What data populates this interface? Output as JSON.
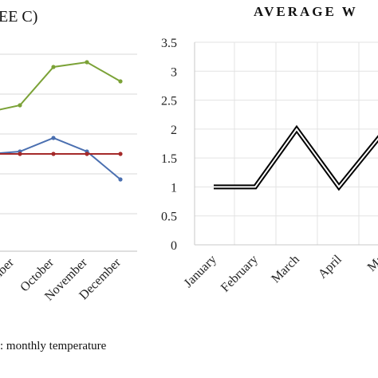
{
  "chart_data": [
    {
      "type": "line",
      "title": "EE C)",
      "categories": [
        "mber",
        "October",
        "November",
        "December"
      ],
      "series": [
        {
          "values": [
            135,
            85,
            78,
            102
          ],
          "color": "#7ba237"
        },
        {
          "values": [
            190,
            173,
            190,
            225
          ],
          "color": "#4a6fb0"
        },
        {
          "values": [
            193,
            193,
            193,
            193
          ],
          "color": "#a52a2a"
        }
      ],
      "legend": [
        ": monthly temperature"
      ],
      "grid": "horizontal"
    },
    {
      "type": "line",
      "title": "AVERAGE W",
      "categories": [
        "January",
        "February",
        "March",
        "April",
        "Ma"
      ],
      "values": [
        1,
        1,
        2,
        1,
        1.9
      ],
      "ylim": [
        0,
        3.5
      ],
      "yticks": [
        "0",
        "0.5",
        "1",
        "1.5",
        "2",
        "2.5",
        "3",
        "3.5"
      ],
      "grid": "both",
      "line_color": "#000000"
    }
  ]
}
